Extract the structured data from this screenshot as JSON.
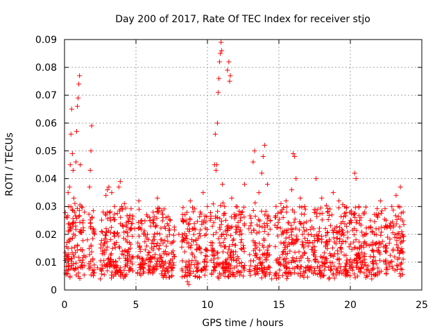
{
  "chart_data": {
    "type": "scatter",
    "title": "Day 200 of 2017, Rate Of TEC Index for receiver stjo",
    "xlabel": "GPS time / hours",
    "ylabel": "ROTI / TECUs",
    "xlim": [
      0,
      25
    ],
    "ylim": [
      0,
      0.09
    ],
    "xticks": [
      0,
      5,
      10,
      15,
      20,
      25
    ],
    "xtick_labels": [
      "0",
      "5",
      "10",
      "15",
      "20",
      "25"
    ],
    "yticks": [
      0,
      0.01,
      0.02,
      0.03,
      0.04,
      0.05,
      0.06,
      0.07,
      0.08,
      0.09
    ],
    "ytick_labels": [
      "0",
      "0.01",
      "0.02",
      "0.03",
      "0.04",
      "0.05",
      "0.06",
      "0.07",
      "0.08",
      "0.09"
    ],
    "grid": true,
    "marker": "+",
    "color": "#ff0000",
    "series": [
      {
        "points": [
          [
            0.1,
            0.012
          ],
          [
            0.2,
            0.026
          ],
          [
            0.25,
            0.035
          ],
          [
            0.3,
            0.03
          ],
          [
            0.35,
            0.037
          ],
          [
            0.4,
            0.045
          ],
          [
            0.45,
            0.056
          ],
          [
            0.5,
            0.065
          ],
          [
            0.55,
            0.049
          ],
          [
            0.6,
            0.043
          ],
          [
            0.65,
            0.033
          ],
          [
            0.7,
            0.028
          ],
          [
            0.8,
            0.046
          ],
          [
            0.85,
            0.057
          ],
          [
            0.9,
            0.066
          ],
          [
            0.95,
            0.069
          ],
          [
            1.0,
            0.074
          ],
          [
            1.05,
            0.077
          ],
          [
            1.1,
            0.045
          ],
          [
            1.2,
            0.03
          ],
          [
            1.3,
            0.025
          ],
          [
            1.4,
            0.028
          ],
          [
            1.6,
            0.018
          ],
          [
            1.75,
            0.037
          ],
          [
            1.8,
            0.043
          ],
          [
            1.85,
            0.05
          ],
          [
            1.9,
            0.059
          ],
          [
            2.0,
            0.022
          ],
          [
            2.1,
            0.02
          ],
          [
            2.3,
            0.008
          ],
          [
            2.5,
            0.004
          ],
          [
            2.7,
            0.028
          ],
          [
            2.9,
            0.034
          ],
          [
            3.0,
            0.036
          ],
          [
            3.1,
            0.037
          ],
          [
            3.3,
            0.035
          ],
          [
            3.5,
            0.03
          ],
          [
            3.8,
            0.037
          ],
          [
            3.9,
            0.039
          ],
          [
            4.0,
            0.03
          ],
          [
            4.3,
            0.018
          ],
          [
            4.6,
            0.015
          ],
          [
            4.9,
            0.022
          ],
          [
            5.2,
            0.032
          ],
          [
            5.4,
            0.025
          ],
          [
            5.8,
            0.02
          ],
          [
            6.2,
            0.028
          ],
          [
            6.5,
            0.033
          ],
          [
            6.8,
            0.018
          ],
          [
            7.1,
            0.026
          ],
          [
            7.4,
            0.025
          ],
          [
            7.7,
            0.012
          ],
          [
            8.0,
            0.02
          ],
          [
            8.3,
            0.025
          ],
          [
            8.5,
            0.01
          ],
          [
            8.7,
            0.002
          ],
          [
            8.8,
            0.032
          ],
          [
            9.0,
            0.022
          ],
          [
            9.2,
            0.018
          ],
          [
            9.5,
            0.028
          ],
          [
            9.7,
            0.035
          ],
          [
            10.0,
            0.03
          ],
          [
            10.2,
            0.025
          ],
          [
            10.5,
            0.045
          ],
          [
            10.55,
            0.056
          ],
          [
            10.6,
            0.043
          ],
          [
            10.65,
            0.045
          ],
          [
            10.7,
            0.06
          ],
          [
            10.75,
            0.071
          ],
          [
            10.8,
            0.076
          ],
          [
            10.85,
            0.082
          ],
          [
            10.9,
            0.085
          ],
          [
            10.95,
            0.089
          ],
          [
            11.0,
            0.086
          ],
          [
            11.05,
            0.038
          ],
          [
            11.2,
            0.03
          ],
          [
            11.4,
            0.079
          ],
          [
            11.5,
            0.082
          ],
          [
            11.55,
            0.075
          ],
          [
            11.6,
            0.077
          ],
          [
            11.7,
            0.033
          ],
          [
            12.0,
            0.03
          ],
          [
            12.3,
            0.025
          ],
          [
            12.6,
            0.038
          ],
          [
            12.9,
            0.022
          ],
          [
            13.2,
            0.046
          ],
          [
            13.3,
            0.05
          ],
          [
            13.6,
            0.035
          ],
          [
            13.8,
            0.042
          ],
          [
            13.9,
            0.048
          ],
          [
            14.0,
            0.052
          ],
          [
            14.2,
            0.038
          ],
          [
            14.4,
            0.025
          ],
          [
            14.8,
            0.03
          ],
          [
            15.1,
            0.028
          ],
          [
            15.5,
            0.032
          ],
          [
            15.9,
            0.036
          ],
          [
            16.0,
            0.049
          ],
          [
            16.1,
            0.048
          ],
          [
            16.2,
            0.04
          ],
          [
            16.5,
            0.033
          ],
          [
            16.8,
            0.03
          ],
          [
            17.2,
            0.025
          ],
          [
            17.6,
            0.04
          ],
          [
            18.0,
            0.033
          ],
          [
            18.4,
            0.028
          ],
          [
            18.8,
            0.035
          ],
          [
            19.2,
            0.032
          ],
          [
            19.6,
            0.03
          ],
          [
            20.0,
            0.025
          ],
          [
            20.3,
            0.042
          ],
          [
            20.4,
            0.04
          ],
          [
            20.6,
            0.03
          ],
          [
            21.0,
            0.028
          ],
          [
            21.4,
            0.025
          ],
          [
            21.8,
            0.022
          ],
          [
            22.1,
            0.032
          ],
          [
            22.5,
            0.025
          ],
          [
            22.9,
            0.03
          ],
          [
            23.2,
            0.034
          ],
          [
            23.5,
            0.037
          ],
          [
            23.7,
            0.028
          ],
          [
            0.5,
            0.015
          ],
          [
            1.5,
            0.012
          ],
          [
            2.8,
            0.009
          ],
          [
            3.6,
            0.01
          ],
          [
            4.5,
            0.007
          ],
          [
            5.5,
            0.006
          ],
          [
            6.0,
            0.01
          ],
          [
            6.9,
            0.008
          ],
          [
            7.5,
            0.005
          ],
          [
            8.6,
            0.003
          ],
          [
            9.3,
            0.007
          ],
          [
            10.3,
            0.006
          ],
          [
            11.3,
            0.007
          ],
          [
            12.5,
            0.005
          ],
          [
            13.5,
            0.008
          ],
          [
            14.5,
            0.004
          ],
          [
            15.5,
            0.006
          ],
          [
            16.5,
            0.005
          ],
          [
            17.5,
            0.007
          ],
          [
            18.5,
            0.004
          ],
          [
            19.5,
            0.006
          ],
          [
            20.5,
            0.005
          ],
          [
            21.5,
            0.004
          ],
          [
            22.5,
            0.006
          ],
          [
            23.5,
            0.005
          ]
        ]
      }
    ]
  }
}
